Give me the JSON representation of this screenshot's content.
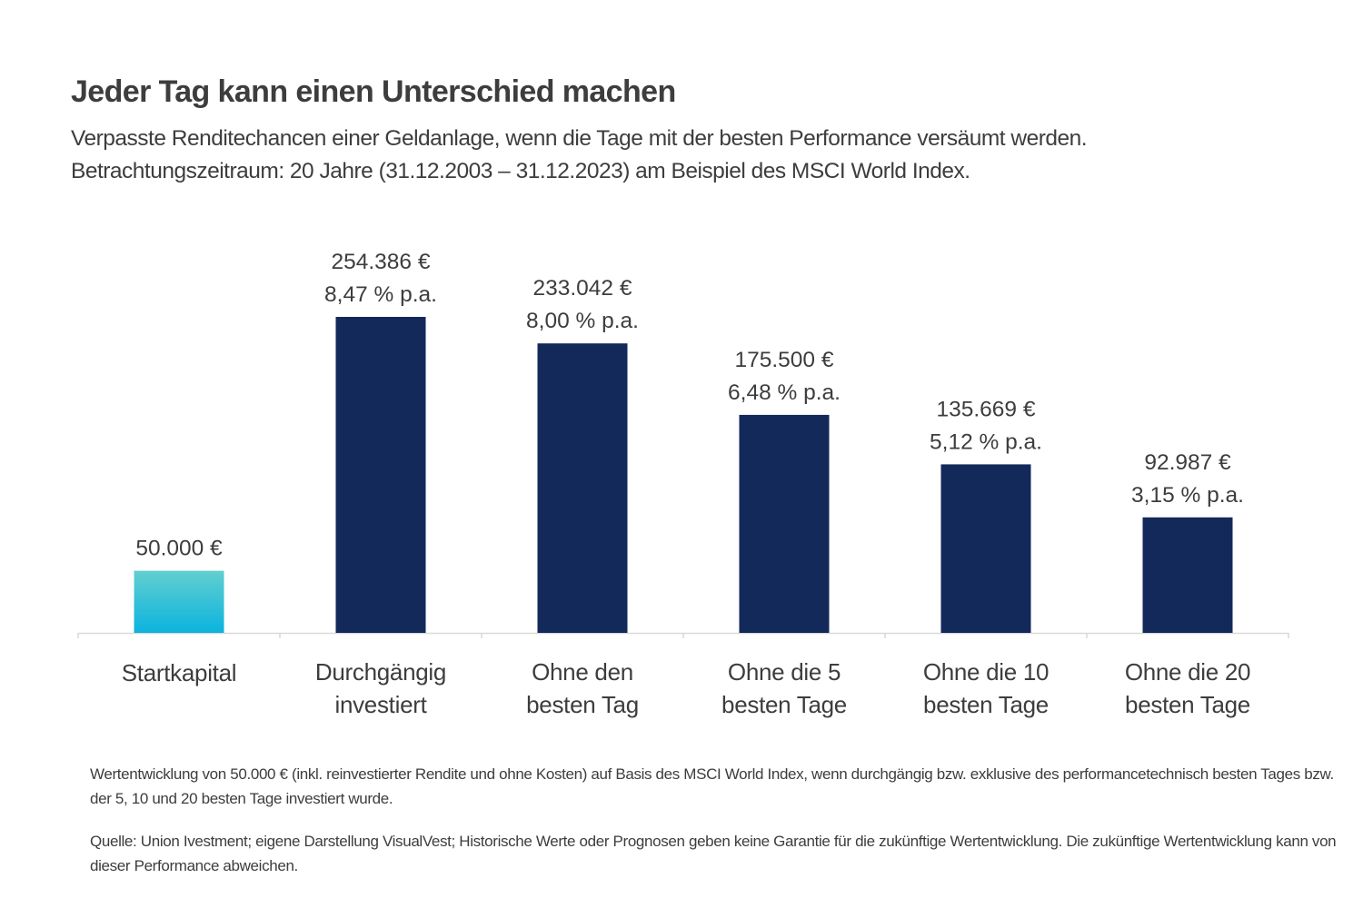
{
  "title": "Jeder Tag kann einen Unterschied machen",
  "subtitle_lines": [
    "Verpasste Renditechancen einer Geldanlage, wenn die Tage mit der besten Performance versäumt werden.",
    "Betrachtungszeitraum: 20 Jahre  (31.12.2003 – 31.12.2023) am Beispiel des MSCI World Index."
  ],
  "colors": {
    "bar": "#13295a",
    "start_top": "#62cfcf",
    "start_bottom": "#0bb3de",
    "axis": "#d9d9d9",
    "text": "#3d3d3d"
  },
  "chart_data": {
    "type": "bar",
    "title": "Jeder Tag kann einen Unterschied machen",
    "categories": [
      [
        "Startkapital"
      ],
      [
        "Durchgängig",
        "investiert"
      ],
      [
        "Ohne den",
        "besten Tag"
      ],
      [
        "Ohne die 5",
        "besten Tage"
      ],
      [
        "Ohne die 10",
        "besten Tage"
      ],
      [
        "Ohne die 20",
        "besten Tage"
      ]
    ],
    "values": [
      50000,
      254386,
      233042,
      175500,
      135669,
      92987
    ],
    "value_labels": [
      "50.000 €",
      "254.386 €",
      "233.042 €",
      "175.500 €",
      "135.669 €",
      "92.987 €"
    ],
    "rate_labels": [
      "",
      "8,47 % p.a.",
      "8,00 % p.a.",
      "6,48 % p.a.",
      "5,12 % p.a.",
      "3,15 % p.a."
    ],
    "grid": false,
    "y_axis_shown": false
  },
  "footnotes": [
    "Wertentwicklung von 50.000 € (inkl. reinvestierter Rendite und ohne Kosten) auf Basis des MSCI World Index, wenn durchgängig bzw. exklusive des performancetechnisch besten Tages bzw. der 5, 10 und 20 besten Tage investiert wurde.",
    "Quelle: Union Ivestment; eigene Darstellung VisualVest; Historische Werte oder Prognosen geben keine Garantie für die zukünftige Wertentwicklung. Die zukünftige Wertentwicklung kann von dieser Performance abweichen."
  ]
}
